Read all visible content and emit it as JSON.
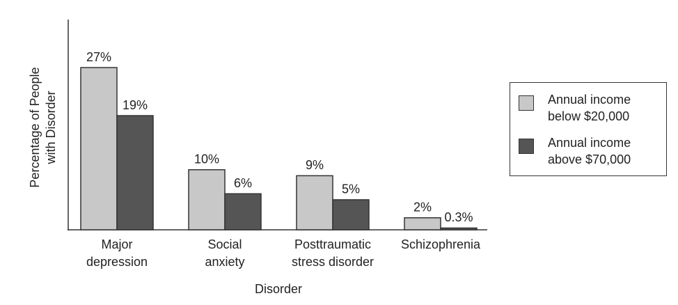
{
  "chart_data": {
    "type": "bar",
    "x_label": "Disorder",
    "y_label": "Percentage of People with Disorder",
    "categories": [
      [
        "Major",
        "depression"
      ],
      [
        "Social",
        "anxiety"
      ],
      [
        "Posttraumatic",
        "stress disorder"
      ],
      [
        "Schizophrenia"
      ]
    ],
    "series": [
      {
        "name": "Annual income below $20,000",
        "color": "#c8c8c8",
        "values": [
          27,
          10,
          9,
          2
        ],
        "value_labels": [
          "27%",
          "10%",
          "9%",
          "2%"
        ]
      },
      {
        "name": "Annual income above $70,000",
        "color": "#555555",
        "values": [
          19,
          6,
          5,
          0.3
        ],
        "value_labels": [
          "19%",
          "6%",
          "5%",
          "0.3%"
        ]
      }
    ],
    "ylim": [
      0,
      35
    ],
    "grid": false,
    "legend": "right"
  }
}
